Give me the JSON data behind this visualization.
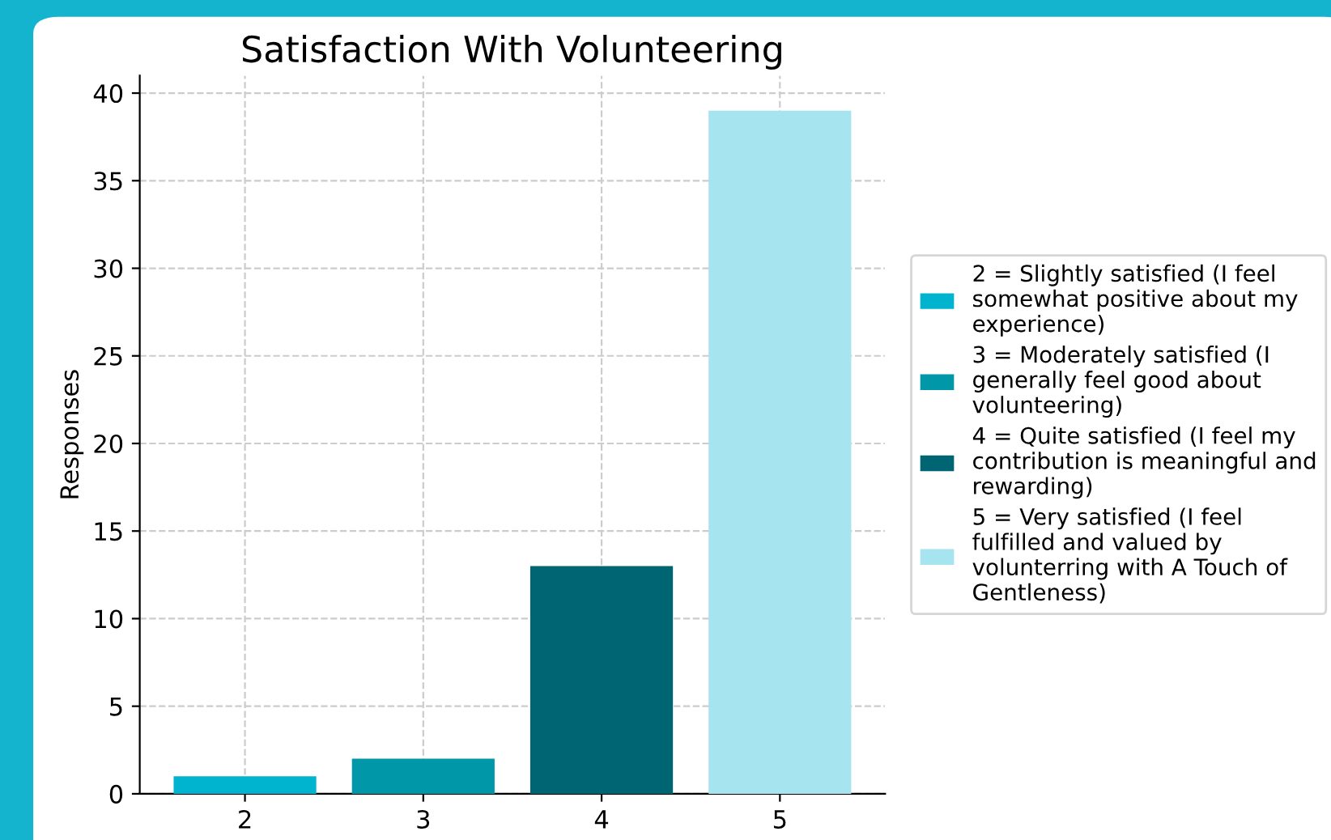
{
  "chart_data": {
    "type": "bar",
    "title": "Satisfaction With Volunteering",
    "ylabel": "Responses",
    "categories": [
      "2",
      "3",
      "4",
      "5"
    ],
    "series": [
      {
        "name": "2 = Slightly satisfied (I feel\nsomewhat positive about my\nexperience)",
        "color": "#00b4d0",
        "values": [
          1,
          null,
          null,
          null
        ]
      },
      {
        "name": "3 = Moderately satisfied (I\ngenerally feel good about\nvolunteering)",
        "color": "#0097a8",
        "values": [
          null,
          2,
          null,
          null
        ]
      },
      {
        "name": "4 = Quite satisfied (I feel my\ncontribution is meaningful and\nrewarding)",
        "color": "#006573",
        "values": [
          null,
          null,
          13,
          null
        ]
      },
      {
        "name": "5 = Very satisfied (I feel\nfulfilled and valued by\nvolunterring with A Touch of\nGentleness)",
        "color": "#a6e4ef",
        "values": [
          null,
          null,
          null,
          39
        ]
      }
    ],
    "ylim": [
      0,
      41
    ],
    "yticks": [
      0,
      5,
      10,
      15,
      20,
      25,
      30,
      35,
      40
    ],
    "grid": true,
    "legend": "right"
  }
}
